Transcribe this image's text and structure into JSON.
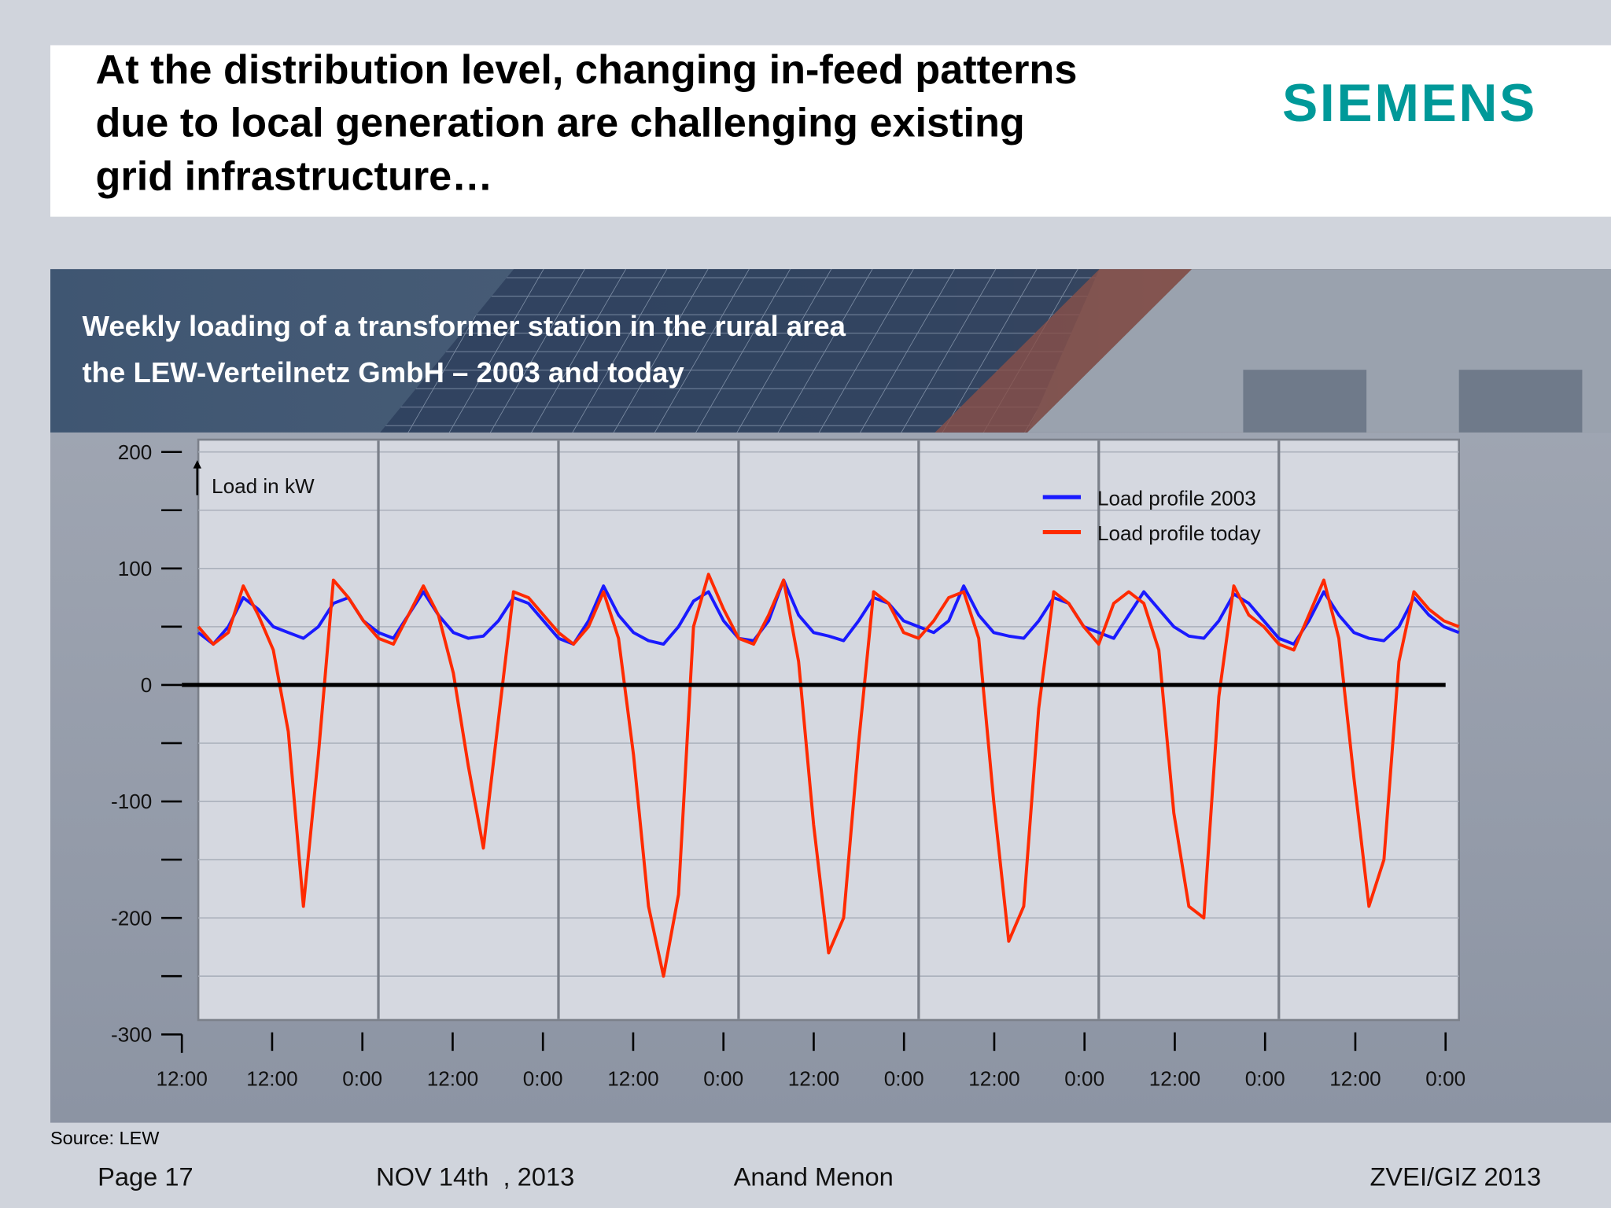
{
  "slide": {
    "title": [
      "At the distribution level, changing in-feed patterns",
      "due to local generation are challenging existing",
      "grid infrastructure…"
    ],
    "logo": "SIEMENS",
    "source": "Source: LEW",
    "footer": {
      "page": "Page 17",
      "date": "NOV 14th  , 2013",
      "author": "Anand Menon",
      "event": "ZVEI/GIZ 2013"
    }
  },
  "chart_data": {
    "type": "line",
    "title": [
      "Weekly loading of a transformer station in the rural area",
      "the LEW-Verteilnetz GmbH – 2003 and today"
    ],
    "y_label": "Load in kW",
    "x": [
      0,
      2,
      4,
      6,
      8,
      10,
      12,
      14,
      16,
      18,
      20,
      22,
      24,
      26,
      28,
      30,
      32,
      34,
      36,
      38,
      40,
      42,
      44,
      46,
      48,
      50,
      52,
      54,
      56,
      58,
      60,
      62,
      64,
      66,
      68,
      70,
      72,
      74,
      76,
      78,
      80,
      82,
      84,
      86,
      88,
      90,
      92,
      94,
      96,
      98,
      100,
      102,
      104,
      106,
      108,
      110,
      112,
      114,
      116,
      118,
      120,
      122,
      124,
      126,
      128,
      130,
      132,
      134,
      136,
      138,
      140,
      142,
      144,
      146,
      148,
      150,
      152,
      154,
      156,
      158,
      160,
      162,
      164,
      166,
      168
    ],
    "xlim": [
      0,
      168
    ],
    "xticks": [
      {
        "value": 0,
        "label": "12:00"
      },
      {
        "value": 12,
        "label": "12:00"
      },
      {
        "value": 24,
        "label": "0:00"
      },
      {
        "value": 36,
        "label": "12:00"
      },
      {
        "value": 48,
        "label": "0:00"
      },
      {
        "value": 60,
        "label": "12:00"
      },
      {
        "value": 72,
        "label": "0:00"
      },
      {
        "value": 84,
        "label": "12:00"
      },
      {
        "value": 96,
        "label": "0:00"
      },
      {
        "value": 108,
        "label": "12:00"
      },
      {
        "value": 120,
        "label": "0:00"
      },
      {
        "value": 132,
        "label": "12:00"
      },
      {
        "value": 144,
        "label": "0:00"
      },
      {
        "value": 156,
        "label": "12:00"
      },
      {
        "value": 168,
        "label": "0:00"
      }
    ],
    "ylim": [
      -300,
      200
    ],
    "yticks": [
      200,
      100,
      0,
      -100,
      -200,
      -300
    ],
    "yticks_minor": [
      150,
      50,
      -50,
      -150,
      -250
    ],
    "grid": true,
    "legend": "top-right",
    "series": [
      {
        "name": "Load profile 2003",
        "color": "#1a1aff",
        "values": [
          45,
          35,
          50,
          75,
          65,
          50,
          45,
          40,
          50,
          70,
          75,
          55,
          45,
          40,
          60,
          80,
          60,
          45,
          40,
          42,
          55,
          75,
          70,
          55,
          40,
          35,
          55,
          85,
          60,
          45,
          38,
          35,
          50,
          72,
          80,
          55,
          40,
          38,
          55,
          90,
          60,
          45,
          42,
          38,
          55,
          75,
          70,
          55,
          50,
          45,
          55,
          85,
          60,
          45,
          42,
          40,
          55,
          75,
          70,
          50,
          45,
          40,
          60,
          80,
          65,
          50,
          42,
          40,
          55,
          78,
          70,
          55,
          40,
          35,
          55,
          80,
          60,
          45,
          40,
          38,
          50,
          75,
          60,
          50,
          45
        ]
      },
      {
        "name": "Load profile today",
        "color": "#ff2a00",
        "values": [
          50,
          35,
          45,
          85,
          60,
          30,
          -40,
          -190,
          -60,
          90,
          75,
          55,
          40,
          35,
          60,
          85,
          60,
          10,
          -70,
          -140,
          -30,
          80,
          75,
          60,
          45,
          35,
          50,
          80,
          40,
          -60,
          -190,
          -250,
          -180,
          50,
          95,
          65,
          40,
          35,
          60,
          90,
          20,
          -120,
          -230,
          -200,
          -50,
          80,
          70,
          45,
          40,
          55,
          75,
          80,
          40,
          -100,
          -220,
          -190,
          -20,
          80,
          70,
          50,
          35,
          70,
          80,
          70,
          30,
          -110,
          -190,
          -200,
          -10,
          85,
          60,
          50,
          35,
          30,
          60,
          90,
          40,
          -80,
          -190,
          -150,
          20,
          80,
          65,
          55,
          50
        ]
      }
    ]
  }
}
